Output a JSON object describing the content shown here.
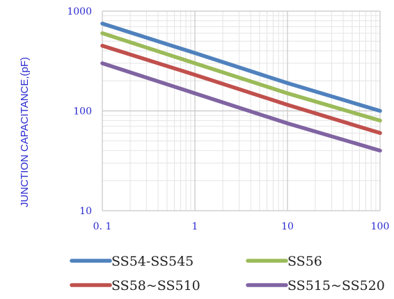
{
  "chart_data": {
    "type": "line",
    "title": "",
    "xlabel": "",
    "ylabel": "JUNCTION CAPACITANCE,(pF)",
    "x_scale": "log",
    "y_scale": "log",
    "xlim": [
      0.1,
      100
    ],
    "ylim": [
      10,
      1000
    ],
    "grid": true,
    "legend_position": "bottom",
    "x_tick_labels": [
      "0.1",
      "1",
      "10",
      "100"
    ],
    "y_tick_labels": [
      "10",
      "100",
      "1000"
    ],
    "series": [
      {
        "name": "SS54-SS545",
        "color": "#4f81bd",
        "x": [
          0.1,
          1,
          10,
          100
        ],
        "y": [
          750,
          380,
          190,
          100
        ]
      },
      {
        "name": "SS56",
        "color": "#9bbb59",
        "x": [
          0.1,
          1,
          10,
          100
        ],
        "y": [
          600,
          300,
          150,
          80
        ]
      },
      {
        "name": "SS58~SS510",
        "color": "#c0504d",
        "x": [
          0.1,
          1,
          10,
          100
        ],
        "y": [
          450,
          230,
          115,
          60
        ]
      },
      {
        "name": "SS515~SS520",
        "color": "#8064a2",
        "x": [
          0.1,
          1,
          10,
          100
        ],
        "y": [
          300,
          150,
          75,
          40
        ]
      }
    ]
  }
}
